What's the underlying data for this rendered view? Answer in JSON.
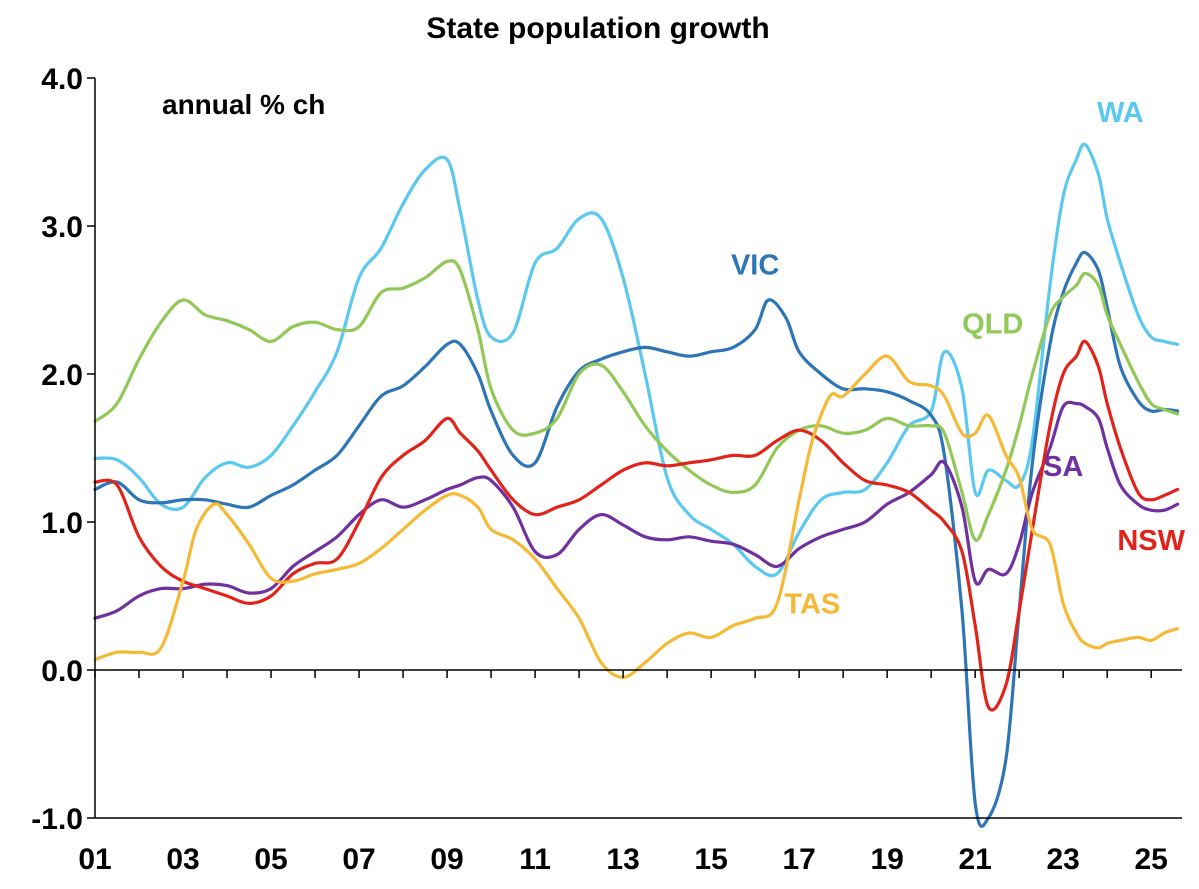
{
  "chart_data": {
    "type": "line",
    "title": "State population growth",
    "ylabel": "annual % ch",
    "xlabel": "",
    "ylim": [
      -1.0,
      4.0
    ],
    "xlim": [
      2001.0,
      2025.7
    ],
    "y_ticks": [
      -1.0,
      0.0,
      1.0,
      2.0,
      3.0,
      4.0
    ],
    "y_tick_labels": [
      "-1.0",
      "0.0",
      "1.0",
      "2.0",
      "3.0",
      "4.0"
    ],
    "x_tick_values": [
      2001,
      2003,
      2005,
      2007,
      2009,
      2011,
      2013,
      2015,
      2017,
      2019,
      2021,
      2023,
      2025
    ],
    "x_tick_labels": [
      "01",
      "03",
      "05",
      "07",
      "09",
      "11",
      "13",
      "15",
      "17",
      "19",
      "21",
      "23",
      "25"
    ],
    "x_minor_ticks": [
      2001,
      2002,
      2003,
      2004,
      2005,
      2006,
      2007,
      2008,
      2009,
      2010,
      2011,
      2012,
      2013,
      2014,
      2015,
      2016,
      2017,
      2018,
      2019,
      2020,
      2021,
      2022,
      2023,
      2024,
      2025
    ],
    "grid": false,
    "series": [
      {
        "name": "WA",
        "color": "#5BC8F0",
        "label_anchor": [
          2024.3,
          3.77
        ],
        "x": [
          2001.0,
          2001.5,
          2002.0,
          2002.5,
          2003.0,
          2003.5,
          2004.0,
          2004.5,
          2005.0,
          2005.5,
          2006.0,
          2006.5,
          2007.0,
          2007.5,
          2008.0,
          2008.5,
          2009.0,
          2009.3,
          2009.7,
          2010.0,
          2010.5,
          2011.0,
          2011.5,
          2012.0,
          2012.5,
          2013.0,
          2013.5,
          2014.0,
          2014.5,
          2015.0,
          2015.5,
          2016.0,
          2016.5,
          2017.0,
          2017.5,
          2018.0,
          2018.5,
          2019.0,
          2019.5,
          2020.0,
          2020.3,
          2020.7,
          2021.0,
          2021.3,
          2021.7,
          2022.0,
          2022.3,
          2022.7,
          2023.0,
          2023.3,
          2023.5,
          2023.8,
          2024.0,
          2024.3,
          2024.7,
          2025.0,
          2025.3,
          2025.6
        ],
        "values": [
          1.43,
          1.42,
          1.3,
          1.12,
          1.1,
          1.3,
          1.4,
          1.37,
          1.45,
          1.65,
          1.88,
          2.15,
          2.65,
          2.85,
          3.15,
          3.38,
          3.45,
          3.1,
          2.5,
          2.25,
          2.28,
          2.75,
          2.85,
          3.05,
          3.05,
          2.65,
          2.0,
          1.3,
          1.05,
          0.95,
          0.85,
          0.7,
          0.65,
          0.93,
          1.15,
          1.2,
          1.22,
          1.4,
          1.65,
          1.75,
          2.15,
          1.9,
          1.2,
          1.35,
          1.28,
          1.25,
          1.55,
          2.6,
          3.2,
          3.45,
          3.55,
          3.35,
          3.05,
          2.75,
          2.4,
          2.25,
          2.22,
          2.2
        ]
      },
      {
        "name": "VIC",
        "color": "#2E75B6",
        "label_anchor": [
          2016.0,
          2.74
        ],
        "x": [
          2001.0,
          2001.5,
          2002.0,
          2002.5,
          2003.0,
          2003.5,
          2004.0,
          2004.5,
          2005.0,
          2005.5,
          2006.0,
          2006.5,
          2007.0,
          2007.5,
          2008.0,
          2008.5,
          2009.0,
          2009.3,
          2009.7,
          2010.0,
          2010.5,
          2011.0,
          2011.5,
          2012.0,
          2012.5,
          2013.0,
          2013.5,
          2014.0,
          2014.5,
          2015.0,
          2015.5,
          2016.0,
          2016.3,
          2016.7,
          2017.0,
          2017.5,
          2018.0,
          2018.5,
          2019.0,
          2019.5,
          2020.0,
          2020.3,
          2020.7,
          2021.0,
          2021.3,
          2021.7,
          2022.0,
          2022.3,
          2022.7,
          2023.0,
          2023.3,
          2023.5,
          2023.8,
          2024.0,
          2024.3,
          2024.7,
          2025.0,
          2025.3,
          2025.6
        ],
        "values": [
          1.22,
          1.27,
          1.15,
          1.13,
          1.15,
          1.15,
          1.12,
          1.1,
          1.18,
          1.25,
          1.35,
          1.45,
          1.65,
          1.85,
          1.92,
          2.05,
          2.2,
          2.2,
          2.0,
          1.75,
          1.45,
          1.4,
          1.78,
          2.02,
          2.1,
          2.15,
          2.18,
          2.15,
          2.12,
          2.15,
          2.18,
          2.3,
          2.5,
          2.38,
          2.15,
          2.0,
          1.9,
          1.9,
          1.88,
          1.82,
          1.72,
          1.45,
          0.4,
          -0.9,
          -1.0,
          -0.6,
          0.4,
          1.4,
          2.2,
          2.55,
          2.75,
          2.82,
          2.7,
          2.45,
          2.05,
          1.82,
          1.75,
          1.76,
          1.75
        ]
      },
      {
        "name": "QLD",
        "color": "#92C857",
        "label_anchor": [
          2021.4,
          2.34
        ],
        "x": [
          2001.0,
          2001.5,
          2002.0,
          2002.5,
          2003.0,
          2003.5,
          2004.0,
          2004.5,
          2005.0,
          2005.5,
          2006.0,
          2006.5,
          2007.0,
          2007.5,
          2008.0,
          2008.5,
          2009.0,
          2009.3,
          2009.7,
          2010.0,
          2010.5,
          2011.0,
          2011.5,
          2012.0,
          2012.5,
          2013.0,
          2013.5,
          2014.0,
          2014.5,
          2015.0,
          2015.5,
          2016.0,
          2016.5,
          2017.0,
          2017.5,
          2018.0,
          2018.5,
          2019.0,
          2019.5,
          2020.0,
          2020.3,
          2020.7,
          2021.0,
          2021.3,
          2021.7,
          2022.0,
          2022.3,
          2022.7,
          2023.0,
          2023.3,
          2023.5,
          2023.8,
          2024.0,
          2024.3,
          2024.7,
          2025.0,
          2025.3,
          2025.6
        ],
        "values": [
          1.68,
          1.8,
          2.1,
          2.35,
          2.5,
          2.4,
          2.36,
          2.3,
          2.22,
          2.32,
          2.35,
          2.3,
          2.32,
          2.55,
          2.58,
          2.65,
          2.76,
          2.7,
          2.3,
          1.9,
          1.62,
          1.6,
          1.7,
          2.0,
          2.06,
          1.88,
          1.65,
          1.48,
          1.35,
          1.25,
          1.2,
          1.25,
          1.5,
          1.62,
          1.65,
          1.6,
          1.62,
          1.7,
          1.65,
          1.65,
          1.6,
          1.2,
          0.88,
          1.05,
          1.35,
          1.65,
          2.0,
          2.4,
          2.52,
          2.6,
          2.68,
          2.6,
          2.4,
          2.2,
          1.95,
          1.8,
          1.76,
          1.73
        ]
      },
      {
        "name": "SA",
        "color": "#7030A0",
        "label_anchor": [
          2023.0,
          1.38
        ],
        "x": [
          2001.0,
          2001.5,
          2002.0,
          2002.5,
          2003.0,
          2003.5,
          2004.0,
          2004.5,
          2005.0,
          2005.5,
          2006.0,
          2006.5,
          2007.0,
          2007.5,
          2008.0,
          2008.5,
          2009.0,
          2009.3,
          2009.7,
          2010.0,
          2010.5,
          2011.0,
          2011.5,
          2012.0,
          2012.5,
          2013.0,
          2013.5,
          2014.0,
          2014.5,
          2015.0,
          2015.5,
          2016.0,
          2016.5,
          2017.0,
          2017.5,
          2018.0,
          2018.5,
          2019.0,
          2019.5,
          2020.0,
          2020.3,
          2020.7,
          2021.0,
          2021.3,
          2021.7,
          2022.0,
          2022.3,
          2022.7,
          2023.0,
          2023.3,
          2023.5,
          2023.8,
          2024.0,
          2024.3,
          2024.7,
          2025.0,
          2025.3,
          2025.6
        ],
        "values": [
          0.35,
          0.4,
          0.5,
          0.55,
          0.55,
          0.58,
          0.57,
          0.52,
          0.55,
          0.7,
          0.8,
          0.9,
          1.05,
          1.15,
          1.1,
          1.15,
          1.22,
          1.25,
          1.3,
          1.28,
          1.1,
          0.8,
          0.78,
          0.95,
          1.05,
          0.98,
          0.9,
          0.88,
          0.9,
          0.87,
          0.85,
          0.78,
          0.7,
          0.82,
          0.9,
          0.95,
          1.0,
          1.12,
          1.2,
          1.32,
          1.4,
          1.1,
          0.6,
          0.68,
          0.65,
          0.85,
          1.2,
          1.5,
          1.78,
          1.8,
          1.78,
          1.7,
          1.5,
          1.25,
          1.12,
          1.08,
          1.08,
          1.12
        ]
      },
      {
        "name": "NSW",
        "color": "#E2231A",
        "label_anchor": [
          2025.0,
          0.88
        ],
        "x": [
          2001.0,
          2001.5,
          2002.0,
          2002.5,
          2003.0,
          2003.5,
          2004.0,
          2004.5,
          2005.0,
          2005.5,
          2006.0,
          2006.5,
          2007.0,
          2007.5,
          2008.0,
          2008.5,
          2009.0,
          2009.3,
          2009.7,
          2010.0,
          2010.5,
          2011.0,
          2011.5,
          2012.0,
          2012.5,
          2013.0,
          2013.5,
          2014.0,
          2014.5,
          2015.0,
          2015.5,
          2016.0,
          2016.5,
          2017.0,
          2017.5,
          2018.0,
          2018.5,
          2019.0,
          2019.5,
          2020.0,
          2020.3,
          2020.7,
          2021.0,
          2021.3,
          2021.7,
          2022.0,
          2022.3,
          2022.7,
          2023.0,
          2023.3,
          2023.5,
          2023.8,
          2024.0,
          2024.3,
          2024.7,
          2025.0,
          2025.3,
          2025.6
        ],
        "values": [
          1.27,
          1.25,
          0.9,
          0.7,
          0.6,
          0.55,
          0.5,
          0.45,
          0.5,
          0.65,
          0.72,
          0.75,
          1.0,
          1.3,
          1.45,
          1.55,
          1.7,
          1.6,
          1.48,
          1.35,
          1.15,
          1.05,
          1.1,
          1.15,
          1.25,
          1.35,
          1.4,
          1.38,
          1.4,
          1.42,
          1.45,
          1.45,
          1.55,
          1.62,
          1.55,
          1.4,
          1.28,
          1.25,
          1.2,
          1.08,
          1.0,
          0.8,
          0.3,
          -0.25,
          -0.1,
          0.4,
          0.95,
          1.65,
          2.0,
          2.12,
          2.22,
          2.05,
          1.8,
          1.5,
          1.2,
          1.15,
          1.18,
          1.22
        ]
      },
      {
        "name": "TAS",
        "color": "#F5B935",
        "label_anchor": [
          2017.3,
          0.45
        ],
        "x": [
          2001.0,
          2001.5,
          2002.0,
          2002.5,
          2003.0,
          2003.3,
          2003.7,
          2004.0,
          2004.5,
          2005.0,
          2005.5,
          2006.0,
          2006.5,
          2007.0,
          2007.5,
          2008.0,
          2008.5,
          2009.0,
          2009.3,
          2009.7,
          2010.0,
          2010.5,
          2011.0,
          2011.5,
          2012.0,
          2012.5,
          2013.0,
          2013.5,
          2014.0,
          2014.5,
          2015.0,
          2015.5,
          2016.0,
          2016.5,
          2017.0,
          2017.3,
          2017.7,
          2018.0,
          2018.5,
          2019.0,
          2019.5,
          2020.0,
          2020.3,
          2020.7,
          2021.0,
          2021.3,
          2021.7,
          2022.0,
          2022.3,
          2022.7,
          2023.0,
          2023.3,
          2023.5,
          2023.8,
          2024.0,
          2024.3,
          2024.7,
          2025.0,
          2025.3,
          2025.6
        ],
        "values": [
          0.07,
          0.12,
          0.12,
          0.15,
          0.6,
          0.95,
          1.12,
          1.05,
          0.85,
          0.62,
          0.6,
          0.65,
          0.68,
          0.72,
          0.82,
          0.95,
          1.08,
          1.18,
          1.18,
          1.1,
          0.95,
          0.88,
          0.75,
          0.55,
          0.35,
          0.05,
          -0.05,
          0.05,
          0.18,
          0.25,
          0.22,
          0.3,
          0.35,
          0.45,
          1.15,
          1.55,
          1.85,
          1.85,
          2.0,
          2.12,
          1.95,
          1.92,
          1.85,
          1.6,
          1.6,
          1.72,
          1.45,
          1.3,
          0.95,
          0.85,
          0.45,
          0.25,
          0.18,
          0.15,
          0.18,
          0.2,
          0.22,
          0.2,
          0.25,
          0.28
        ]
      }
    ]
  }
}
